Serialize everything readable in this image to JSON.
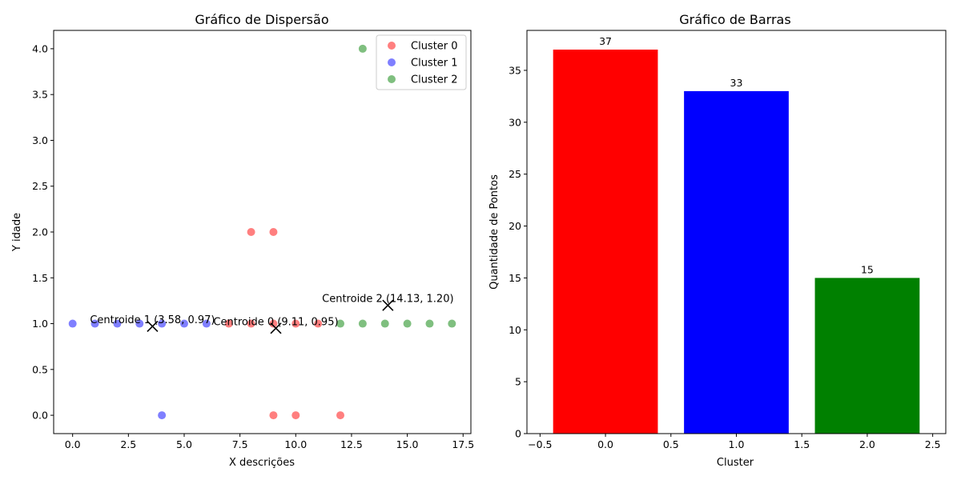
{
  "chart_data": [
    {
      "type": "scatter",
      "title": "Gráfico de Dispersão",
      "xlabel": "X descrições",
      "ylabel": "Y idade",
      "xlim": [
        -0.85,
        17.85
      ],
      "ylim": [
        -0.2,
        4.2
      ],
      "xticks": [
        "0.0",
        "2.5",
        "5.0",
        "7.5",
        "10.0",
        "12.5",
        "15.0",
        "17.5"
      ],
      "yticks": [
        "0.0",
        "0.5",
        "1.0",
        "1.5",
        "2.0",
        "2.5",
        "3.0",
        "3.5",
        "4.0"
      ],
      "legend_position": "top-right",
      "series": [
        {
          "name": "Cluster 0",
          "color": "#ff0000",
          "points": [
            [
              7,
              1
            ],
            [
              8,
              1
            ],
            [
              9,
              1
            ],
            [
              10,
              1
            ],
            [
              11,
              1
            ],
            [
              8,
              2
            ],
            [
              9,
              2
            ],
            [
              9,
              0
            ],
            [
              10,
              0
            ],
            [
              12,
              0
            ]
          ]
        },
        {
          "name": "Cluster 1",
          "color": "#0000ff",
          "points": [
            [
              0,
              1
            ],
            [
              1,
              1
            ],
            [
              2,
              1
            ],
            [
              3,
              1
            ],
            [
              4,
              1
            ],
            [
              5,
              1
            ],
            [
              6,
              1
            ],
            [
              4,
              0
            ]
          ]
        },
        {
          "name": "Cluster 2",
          "color": "#008000",
          "points": [
            [
              12,
              1
            ],
            [
              13,
              1
            ],
            [
              14,
              1
            ],
            [
              15,
              1
            ],
            [
              16,
              1
            ],
            [
              17,
              1
            ],
            [
              13,
              4
            ]
          ]
        }
      ],
      "centroids": [
        {
          "label": "Centroide 0 (9.11, 0.95)",
          "x": 9.11,
          "y": 0.95
        },
        {
          "label": "Centroide 1 (3.58, 0.97)",
          "x": 3.58,
          "y": 0.97
        },
        {
          "label": "Centroide 2 (14.13, 1.20)",
          "x": 14.13,
          "y": 1.2
        }
      ]
    },
    {
      "type": "bar",
      "title": "Gráfico de Barras",
      "xlabel": "Cluster",
      "ylabel": "Quantidade de Pontos",
      "xlim": [
        -0.6,
        2.6
      ],
      "ylim": [
        0,
        38.85
      ],
      "xticks": [
        "−0.5",
        "0.0",
        "0.5",
        "1.0",
        "1.5",
        "2.0",
        "2.5"
      ],
      "yticks": [
        "0",
        "5",
        "10",
        "15",
        "20",
        "25",
        "30",
        "35"
      ],
      "categories": [
        0,
        1,
        2
      ],
      "values": [
        37,
        33,
        15
      ],
      "value_labels": [
        "37",
        "33",
        "15"
      ],
      "colors": [
        "#ff0000",
        "#0000ff",
        "#008000"
      ]
    }
  ]
}
